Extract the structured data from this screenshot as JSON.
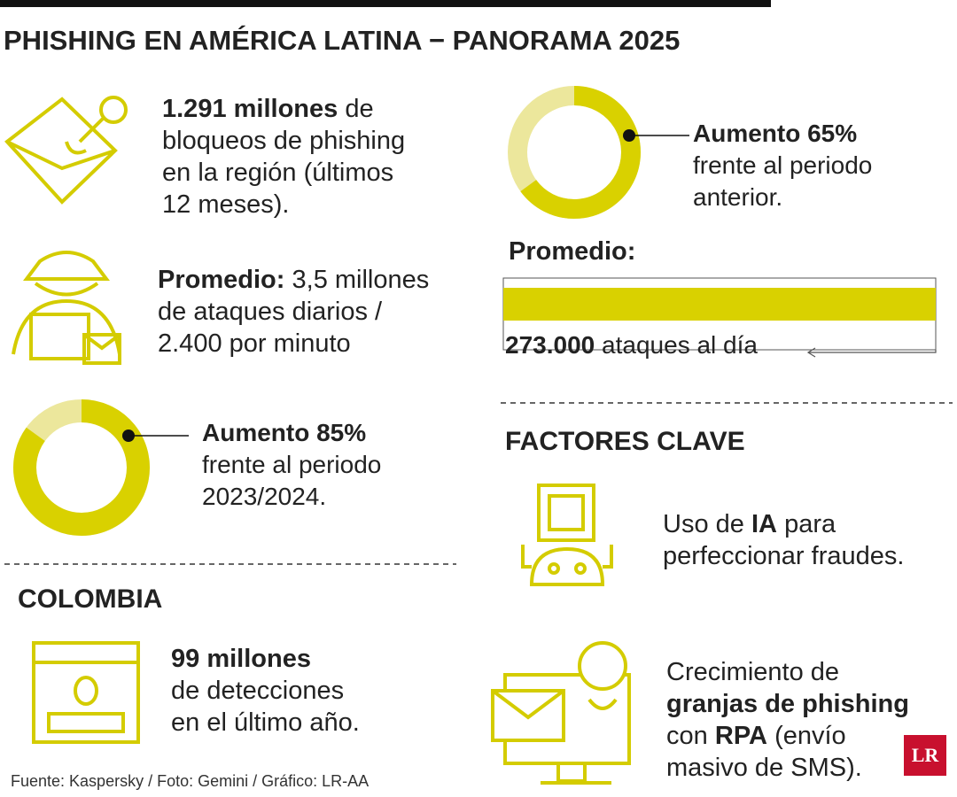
{
  "title": "PHISHING EN AMÉRICA LATINA − PANORAMA 2025",
  "region_blocks": [
    {
      "lines": [
        [
          {
            "text": "1.291 millones",
            "bold": true
          },
          "de"
        ],
        [
          "bloqueos de phishing"
        ],
        [
          "en la región (últimos"
        ],
        [
          "12 meses)."
        ]
      ]
    },
    {
      "lines": [
        [
          {
            "text": "Promedio:",
            "bold": true
          },
          "3,5 millones"
        ],
        [
          "de ataques diarios /"
        ],
        [
          "2.400 por minuto"
        ]
      ]
    },
    {
      "donut": 85,
      "lines": [
        [
          {
            "text": "Aumento 85%",
            "bold": true
          }
        ],
        [
          "frente al periodo"
        ],
        [
          "2023/2024."
        ]
      ]
    },
    {
      "donut": 65,
      "lines": [
        [
          {
            "text": "Aumento 65%",
            "bold": true
          }
        ],
        [
          "frente al periodo"
        ],
        [
          "anterior."
        ]
      ]
    }
  ],
  "average": {
    "label": "Promedio:",
    "lines": [
      [
        {
          "text": "273.000",
          "bold": true
        },
        "ataques al día"
      ]
    ]
  },
  "colombia": {
    "title": "COLOMBIA",
    "lines": [
      [
        {
          "text": "99 millones",
          "bold": true
        }
      ],
      [
        "de detecciones"
      ],
      [
        "en el último año."
      ]
    ]
  },
  "factors": {
    "title": "FACTORES CLAVE",
    "items": [
      {
        "lines": [
          [
            "Uso de",
            {
              "text": "IA",
              "bold": true
            },
            "para"
          ],
          [
            "perfeccionar fraudes."
          ]
        ]
      },
      {
        "lines": [
          [
            "Crecimiento de"
          ],
          [
            {
              "text": "granjas de phishing",
              "bold": true
            }
          ],
          [
            "con",
            {
              "text": "RPA",
              "bold": true
            },
            "(envío"
          ],
          [
            "masivo de SMS)."
          ]
        ]
      }
    ]
  },
  "source": "Fuente: Kaspersky / Foto: Gemini / Gráfico: LR-AA",
  "logo": "LR"
}
